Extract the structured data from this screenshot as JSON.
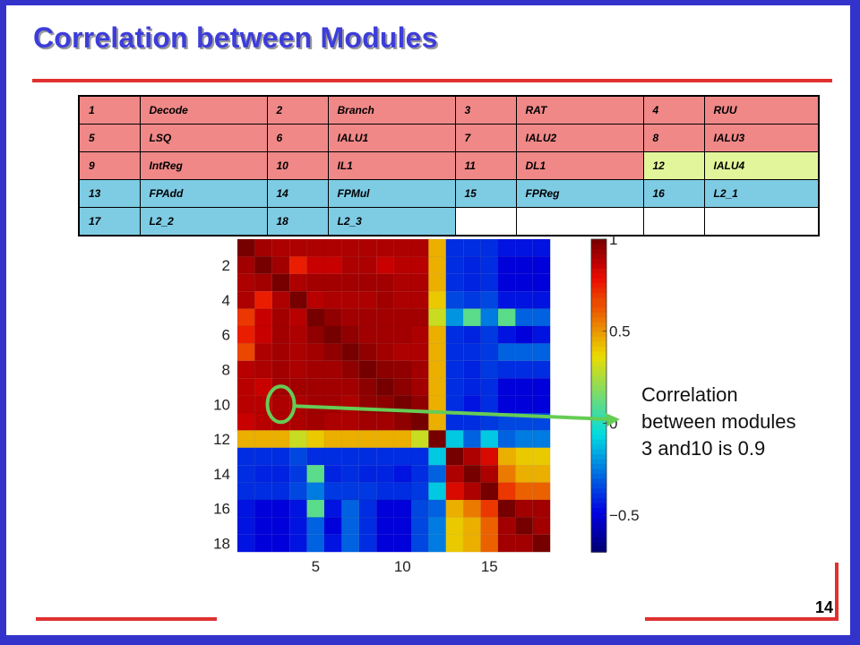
{
  "slide": {
    "title": "Correlation between Modules",
    "page_number": "14"
  },
  "module_table": {
    "rows": [
      [
        {
          "num": "1",
          "name": "Decode",
          "group": "red"
        },
        {
          "num": "2",
          "name": "Branch",
          "group": "red"
        },
        {
          "num": "3",
          "name": "RAT",
          "group": "red"
        },
        {
          "num": "4",
          "name": "RUU",
          "group": "red"
        }
      ],
      [
        {
          "num": "5",
          "name": "LSQ",
          "group": "red"
        },
        {
          "num": "6",
          "name": "IALU1",
          "group": "red"
        },
        {
          "num": "7",
          "name": "IALU2",
          "group": "red"
        },
        {
          "num": "8",
          "name": "IALU3",
          "group": "red"
        }
      ],
      [
        {
          "num": "9",
          "name": "IntReg",
          "group": "red"
        },
        {
          "num": "10",
          "name": "IL1",
          "group": "red"
        },
        {
          "num": "11",
          "name": "DL1",
          "group": "red"
        },
        {
          "num": "12",
          "name": "IALU4",
          "group": "yellow"
        }
      ],
      [
        {
          "num": "13",
          "name": "FPAdd",
          "group": "blue"
        },
        {
          "num": "14",
          "name": "FPMul",
          "group": "blue"
        },
        {
          "num": "15",
          "name": "FPReg",
          "group": "blue"
        },
        {
          "num": "16",
          "name": "L2_1",
          "group": "blue"
        }
      ],
      [
        {
          "num": "17",
          "name": "L2_2",
          "group": "blue"
        },
        {
          "num": "18",
          "name": "L2_3",
          "group": "blue"
        },
        {
          "num": "",
          "name": "",
          "group": "empty"
        },
        {
          "num": "",
          "name": "",
          "group": "empty"
        }
      ]
    ],
    "colors": {
      "red": "#f08888",
      "yellow": "#e3f59a",
      "blue": "#7ecbe4",
      "empty": "#ffffff"
    }
  },
  "annotation": {
    "lines": [
      "Correlation",
      "between modules",
      "3 and10 is 0.9"
    ],
    "highlight_cell": {
      "row": 10,
      "col": 3
    },
    "circle_color": "#66cc55",
    "arrow_color": "#66cc55"
  },
  "chart_data": {
    "type": "heatmap",
    "rows": 18,
    "cols": 18,
    "x_ticks": [
      "5",
      "10",
      "15"
    ],
    "x_tick_values": [
      5,
      10,
      15
    ],
    "y_ticks": [
      "2",
      "4",
      "6",
      "8",
      "10",
      "12",
      "14",
      "16",
      "18"
    ],
    "y_tick_values": [
      2,
      4,
      6,
      8,
      10,
      12,
      14,
      16,
      18
    ],
    "colorbar_ticks": [
      "1",
      "0.5",
      "0",
      "−0.5"
    ],
    "colorbar_tick_values": [
      1,
      0.5,
      0,
      -0.5
    ],
    "value_range": [
      -0.7,
      1
    ],
    "colormap": "jet",
    "values": [
      [
        1.0,
        0.92,
        0.9,
        0.9,
        0.9,
        0.9,
        0.9,
        0.9,
        0.9,
        0.9,
        0.9,
        0.45,
        -0.4,
        -0.4,
        -0.4,
        -0.45,
        -0.45,
        -0.45
      ],
      [
        0.92,
        1.0,
        0.92,
        0.75,
        0.85,
        0.85,
        0.9,
        0.9,
        0.85,
        0.88,
        0.88,
        0.45,
        -0.4,
        -0.42,
        -0.4,
        -0.5,
        -0.5,
        -0.5
      ],
      [
        0.9,
        0.92,
        1.0,
        0.9,
        0.92,
        0.92,
        0.92,
        0.92,
        0.92,
        0.9,
        0.9,
        0.45,
        -0.4,
        -0.42,
        -0.4,
        -0.5,
        -0.5,
        -0.5
      ],
      [
        0.9,
        0.75,
        0.9,
        1.0,
        0.88,
        0.9,
        0.9,
        0.9,
        0.92,
        0.9,
        0.9,
        0.4,
        -0.35,
        -0.38,
        -0.35,
        -0.45,
        -0.45,
        -0.45
      ],
      [
        0.7,
        0.85,
        0.92,
        0.88,
        1.0,
        0.95,
        0.92,
        0.92,
        0.92,
        0.92,
        0.92,
        0.3,
        -0.2,
        0.1,
        -0.25,
        0.1,
        -0.3,
        -0.3
      ],
      [
        0.75,
        0.85,
        0.92,
        0.9,
        0.95,
        1.0,
        0.95,
        0.92,
        0.92,
        0.92,
        0.9,
        0.45,
        -0.4,
        -0.42,
        -0.38,
        -0.45,
        -0.5,
        -0.45
      ],
      [
        0.65,
        0.9,
        0.92,
        0.9,
        0.92,
        0.95,
        1.0,
        0.95,
        0.92,
        0.9,
        0.9,
        0.45,
        -0.4,
        -0.4,
        -0.38,
        -0.3,
        -0.3,
        -0.3
      ],
      [
        0.88,
        0.9,
        0.92,
        0.9,
        0.92,
        0.92,
        0.95,
        1.0,
        0.96,
        0.95,
        0.92,
        0.45,
        -0.4,
        -0.42,
        -0.38,
        -0.4,
        -0.4,
        -0.4
      ],
      [
        0.88,
        0.85,
        0.92,
        0.92,
        0.92,
        0.92,
        0.92,
        0.96,
        1.0,
        0.96,
        0.92,
        0.45,
        -0.4,
        -0.42,
        -0.4,
        -0.5,
        -0.5,
        -0.5
      ],
      [
        0.88,
        0.88,
        0.9,
        0.9,
        0.92,
        0.92,
        0.9,
        0.95,
        0.96,
        1.0,
        0.95,
        0.45,
        -0.4,
        -0.45,
        -0.4,
        -0.5,
        -0.5,
        -0.5
      ],
      [
        0.85,
        0.88,
        0.9,
        0.9,
        0.92,
        0.9,
        0.9,
        0.92,
        0.92,
        0.95,
        1.0,
        0.45,
        -0.4,
        -0.4,
        -0.38,
        -0.35,
        -0.35,
        -0.35
      ],
      [
        0.45,
        0.45,
        0.45,
        0.3,
        0.4,
        0.45,
        0.45,
        0.45,
        0.45,
        0.45,
        0.3,
        1.0,
        -0.1,
        -0.3,
        -0.1,
        -0.3,
        -0.25,
        -0.25
      ],
      [
        -0.4,
        -0.4,
        -0.4,
        -0.35,
        -0.4,
        -0.4,
        -0.4,
        -0.4,
        -0.4,
        -0.4,
        -0.4,
        -0.1,
        1.0,
        0.9,
        0.82,
        0.45,
        0.4,
        0.4
      ],
      [
        -0.4,
        -0.42,
        -0.42,
        -0.38,
        0.1,
        -0.42,
        -0.4,
        -0.42,
        -0.42,
        -0.45,
        -0.4,
        -0.3,
        0.9,
        1.0,
        0.9,
        0.55,
        0.45,
        0.45
      ],
      [
        -0.4,
        -0.4,
        -0.4,
        -0.35,
        -0.25,
        -0.38,
        -0.38,
        -0.38,
        -0.4,
        -0.4,
        -0.38,
        -0.1,
        0.82,
        0.9,
        1.0,
        0.7,
        0.6,
        0.6
      ],
      [
        -0.45,
        -0.5,
        -0.5,
        -0.45,
        0.1,
        -0.45,
        -0.3,
        -0.4,
        -0.5,
        -0.5,
        -0.35,
        -0.3,
        0.45,
        0.55,
        0.7,
        1.0,
        0.92,
        0.92
      ],
      [
        -0.45,
        -0.5,
        -0.5,
        -0.45,
        -0.3,
        -0.5,
        -0.3,
        -0.4,
        -0.5,
        -0.5,
        -0.35,
        -0.25,
        0.4,
        0.45,
        0.6,
        0.92,
        1.0,
        0.92
      ],
      [
        -0.45,
        -0.5,
        -0.5,
        -0.45,
        -0.3,
        -0.45,
        -0.3,
        -0.4,
        -0.5,
        -0.5,
        -0.35,
        -0.25,
        0.4,
        0.45,
        0.6,
        0.92,
        0.92,
        1.0
      ]
    ]
  }
}
